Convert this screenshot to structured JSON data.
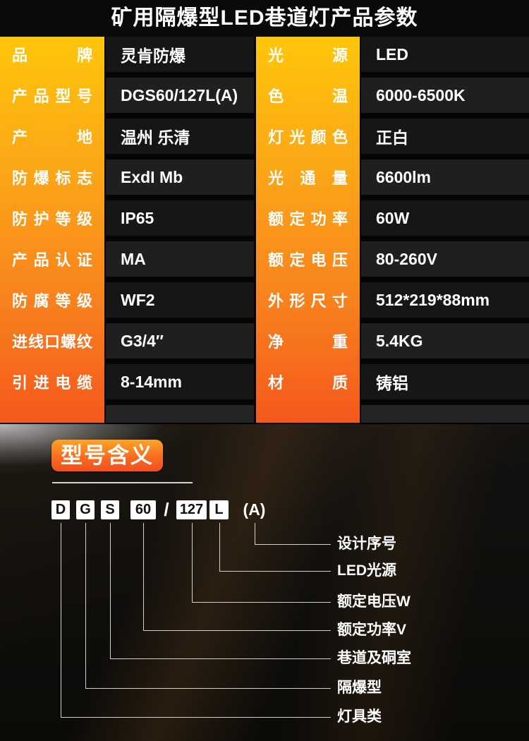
{
  "title": "矿用隔爆型LED巷道灯产品参数",
  "spec_table": {
    "left_rows": [
      {
        "label": "品牌",
        "value": "灵肯防爆"
      },
      {
        "label": "产品型号",
        "value": "DGS60/127L(A)"
      },
      {
        "label": "产地",
        "value": "温州 乐清"
      },
      {
        "label": "防爆标志",
        "value": "ExdI Mb"
      },
      {
        "label": "防护等级",
        "value": "IP65"
      },
      {
        "label": "产品认证",
        "value": "MA"
      },
      {
        "label": "防腐等级",
        "value": "WF2"
      },
      {
        "label": "进线口螺纹",
        "value": "G3/4″"
      },
      {
        "label": "引进电缆",
        "value": "8-14mm"
      }
    ],
    "right_rows": [
      {
        "label": "光源",
        "value": "LED"
      },
      {
        "label": "色温",
        "value": "6000-6500K"
      },
      {
        "label": "灯光颜色",
        "value": "正白"
      },
      {
        "label": "光通量",
        "value": "6600lm"
      },
      {
        "label": "额定功率",
        "value": "60W"
      },
      {
        "label": "额定电压",
        "value": "80-260V"
      },
      {
        "label": "外形尺寸",
        "value": "512*219*88mm"
      },
      {
        "label": "净重",
        "value": "5.4KG"
      },
      {
        "label": "材质",
        "value": "铸铝"
      }
    ]
  },
  "model_section": {
    "heading": "型号含义",
    "model_segments": [
      {
        "text": "D",
        "boxed": true
      },
      {
        "text": "G",
        "boxed": true
      },
      {
        "text": "S",
        "boxed": true
      },
      {
        "text": "60",
        "boxed": true
      },
      {
        "text": "/",
        "boxed": false
      },
      {
        "text": "127",
        "boxed": true
      },
      {
        "text": "L",
        "boxed": true
      },
      {
        "text": "(A)",
        "boxed": false
      }
    ],
    "legend": [
      {
        "segment": "(A)",
        "label": "设计序号"
      },
      {
        "segment": "L",
        "label": "LED光源"
      },
      {
        "segment": "127",
        "label": "额定电压W"
      },
      {
        "segment": "60",
        "label": "额定功率V"
      },
      {
        "segment": "S",
        "label": "巷道及硐室"
      },
      {
        "segment": "G",
        "label": "隔爆型"
      },
      {
        "segment": "D",
        "label": "灯具类"
      }
    ]
  },
  "colors": {
    "page_bg": "#0a0a0a",
    "label_gradient_top": "#fec60a",
    "label_gradient_bottom": "#f4581d",
    "value_cell_bg": "#1b1b1b",
    "badge_gradient_top": "#ffa524",
    "badge_gradient_bottom": "#f14f1f",
    "model_box_bg": "#ffffff",
    "connector_line": "#d4d0c8",
    "text_white": "#ffffff"
  }
}
